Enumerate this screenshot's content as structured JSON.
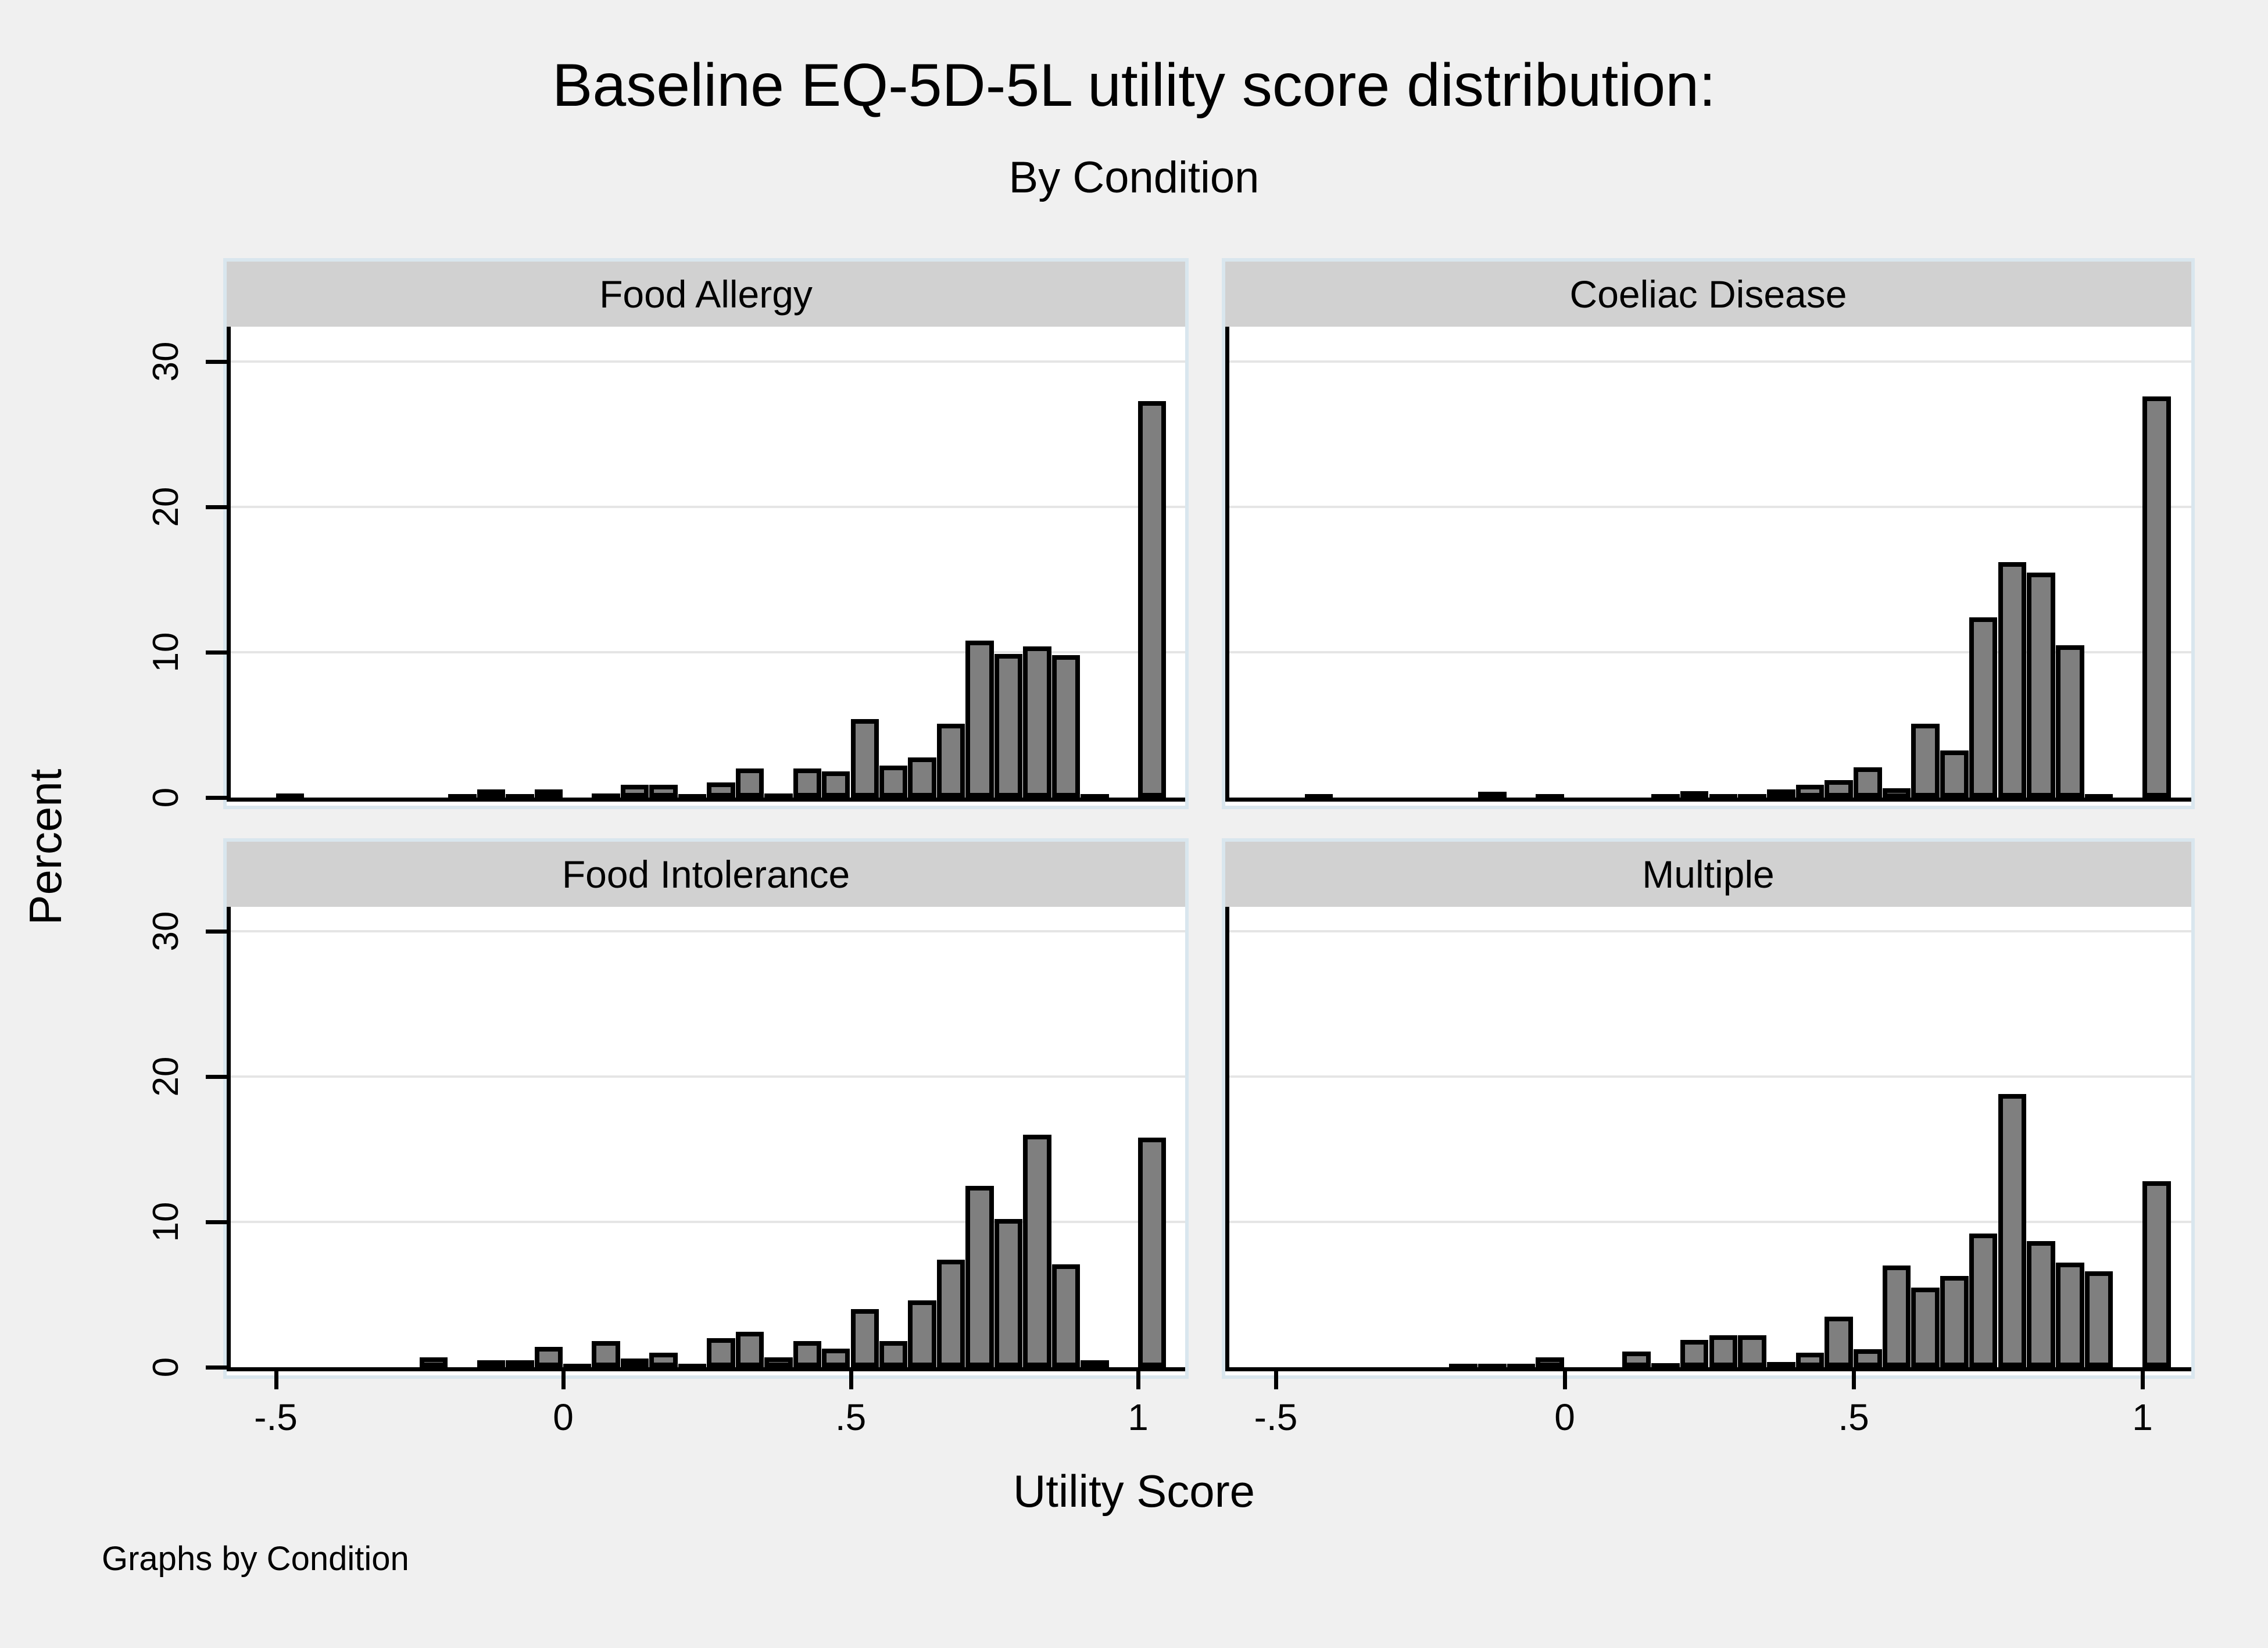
{
  "figure": {
    "title": "Baseline EQ-5D-5L utility score distribution:",
    "subtitle": "By Condition",
    "note": "Graphs by Condition"
  },
  "axes": {
    "x_title": "Utility Score",
    "y_title": "Percent",
    "x_ticks": [
      "-.5",
      "0",
      ".5",
      "1"
    ],
    "x_tick_values": [
      -0.5,
      0,
      0.5,
      1
    ],
    "y_ticks": [
      "0",
      "10",
      "20",
      "30"
    ],
    "y_tick_values": [
      0,
      10,
      20,
      30
    ],
    "y_max_percent": 32.5,
    "x_range": [
      -0.585,
      1.08
    ],
    "grid": "horizontal-only",
    "legend": "none"
  },
  "colors": {
    "background": "#f0f0f0",
    "panel_frame": "#d9e6ee",
    "header_bg": "#d1d1d1",
    "plot_bg": "#ffffff",
    "gridline": "#e5e5e5",
    "bar_fill": "#7f7f7f",
    "bar_outline": "#000000",
    "text": "#000000"
  },
  "chart_data": [
    {
      "type": "bar",
      "subtype": "histogram",
      "title": "Food Allergy",
      "xlabel": "Utility Score",
      "ylabel": "Percent",
      "bin_width": 0.05,
      "note": "bins given as [bin_left_edge_utility, percent]",
      "bins": [
        [
          -0.5,
          0.3
        ],
        [
          -0.2,
          0.2
        ],
        [
          -0.15,
          0.55
        ],
        [
          -0.1,
          0.2
        ],
        [
          -0.05,
          0.55
        ],
        [
          0.05,
          0.3
        ],
        [
          0.1,
          0.9
        ],
        [
          0.15,
          0.9
        ],
        [
          0.2,
          0.1
        ],
        [
          0.25,
          1.05
        ],
        [
          0.3,
          2.0
        ],
        [
          0.35,
          0.3
        ],
        [
          0.4,
          2.0
        ],
        [
          0.45,
          1.8
        ],
        [
          0.5,
          5.4
        ],
        [
          0.55,
          2.2
        ],
        [
          0.6,
          2.75
        ],
        [
          0.65,
          5.1
        ],
        [
          0.7,
          10.8
        ],
        [
          0.75,
          9.9
        ],
        [
          0.8,
          10.4
        ],
        [
          0.85,
          9.8
        ],
        [
          0.9,
          0.15
        ],
        [
          1.0,
          27.3
        ]
      ]
    },
    {
      "type": "bar",
      "subtype": "histogram",
      "title": "Coeliac Disease",
      "xlabel": "Utility Score",
      "ylabel": "Percent",
      "bin_width": 0.05,
      "note": "bins given as [bin_left_edge_utility, percent]",
      "bins": [
        [
          -0.45,
          0.2
        ],
        [
          -0.15,
          0.4
        ],
        [
          -0.05,
          0.2
        ],
        [
          0.15,
          0.2
        ],
        [
          0.2,
          0.45
        ],
        [
          0.25,
          0.2
        ],
        [
          0.3,
          0.2
        ],
        [
          0.35,
          0.55
        ],
        [
          0.4,
          0.9
        ],
        [
          0.45,
          1.2
        ],
        [
          0.5,
          2.1
        ],
        [
          0.55,
          0.65
        ],
        [
          0.6,
          5.1
        ],
        [
          0.65,
          3.25
        ],
        [
          0.7,
          12.4
        ],
        [
          0.75,
          16.2
        ],
        [
          0.8,
          15.5
        ],
        [
          0.85,
          10.5
        ],
        [
          0.9,
          0.2
        ],
        [
          1.0,
          27.6
        ]
      ]
    },
    {
      "type": "bar",
      "subtype": "histogram",
      "title": "Food Intolerance",
      "xlabel": "Utility Score",
      "ylabel": "Percent",
      "bin_width": 0.05,
      "note": "bins given as [bin_left_edge_utility, percent]",
      "bins": [
        [
          -0.25,
          0.7
        ],
        [
          -0.15,
          0.5
        ],
        [
          -0.1,
          0.5
        ],
        [
          -0.05,
          1.4
        ],
        [
          0.0,
          0.2
        ],
        [
          0.05,
          1.8
        ],
        [
          0.1,
          0.6
        ],
        [
          0.15,
          1.0
        ],
        [
          0.2,
          0.2
        ],
        [
          0.25,
          2.0
        ],
        [
          0.3,
          2.45
        ],
        [
          0.35,
          0.7
        ],
        [
          0.4,
          1.8
        ],
        [
          0.45,
          1.3
        ],
        [
          0.5,
          4.0
        ],
        [
          0.55,
          1.8
        ],
        [
          0.6,
          4.6
        ],
        [
          0.65,
          7.4
        ],
        [
          0.7,
          12.5
        ],
        [
          0.75,
          10.2
        ],
        [
          0.8,
          16.0
        ],
        [
          0.85,
          7.1
        ],
        [
          0.9,
          0.5
        ],
        [
          1.0,
          15.8
        ]
      ]
    },
    {
      "type": "bar",
      "subtype": "histogram",
      "title": "Multiple",
      "xlabel": "Utility Score",
      "ylabel": "Percent",
      "bin_width": 0.05,
      "note": "bins given as [bin_left_edge_utility, percent]",
      "bins": [
        [
          -0.2,
          0.2
        ],
        [
          -0.15,
          0.2
        ],
        [
          -0.1,
          0.2
        ],
        [
          -0.05,
          0.7
        ],
        [
          0.1,
          1.1
        ],
        [
          0.15,
          0.3
        ],
        [
          0.2,
          1.9
        ],
        [
          0.25,
          2.2
        ],
        [
          0.3,
          2.2
        ],
        [
          0.35,
          0.35
        ],
        [
          0.4,
          1.0
        ],
        [
          0.45,
          3.5
        ],
        [
          0.5,
          1.25
        ],
        [
          0.55,
          7.0
        ],
        [
          0.6,
          5.5
        ],
        [
          0.65,
          6.3
        ],
        [
          0.7,
          9.2
        ],
        [
          0.75,
          18.8
        ],
        [
          0.8,
          8.7
        ],
        [
          0.85,
          7.2
        ],
        [
          0.9,
          6.6
        ],
        [
          1.0,
          12.8
        ]
      ]
    }
  ]
}
